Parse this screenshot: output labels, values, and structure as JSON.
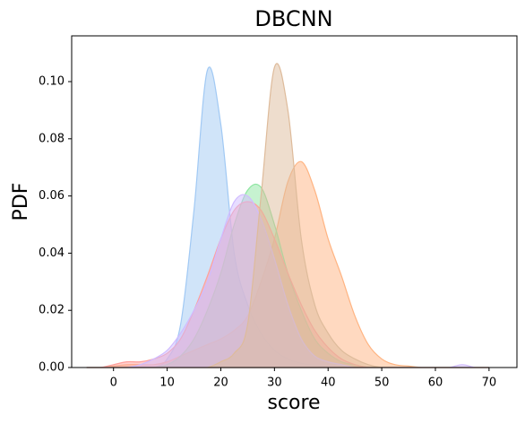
{
  "chart_data": {
    "type": "area",
    "title": "DBCNN",
    "x_label": "score",
    "y_label": "PDF",
    "x": [
      -5,
      -2.5,
      0,
      2.5,
      5,
      7.5,
      10,
      12.5,
      15,
      17.5,
      20,
      22.5,
      25,
      27.5,
      30,
      32.5,
      35,
      37.5,
      40,
      42.5,
      45,
      47.5,
      50,
      52.5,
      55,
      57.5,
      60,
      62.5,
      65,
      67.5,
      70
    ],
    "series": [
      {
        "color": "#a1c9f4",
        "values": [
          0,
          0,
          0,
          0,
          0,
          0,
          0.003,
          0.015,
          0.055,
          0.104,
          0.085,
          0.04,
          0.022,
          0.012,
          0.006,
          0.003,
          0.0015,
          0.0008,
          0.0003,
          0,
          0,
          0,
          0,
          0,
          0,
          0,
          0,
          0,
          0,
          0,
          0
        ]
      },
      {
        "color": "#ffb482",
        "values": [
          0,
          0,
          0.0005,
          0.001,
          0.001,
          0.001,
          0.002,
          0.004,
          0.006,
          0.008,
          0.01,
          0.013,
          0.018,
          0.03,
          0.045,
          0.065,
          0.072,
          0.062,
          0.045,
          0.032,
          0.018,
          0.008,
          0.003,
          0.001,
          0.0005,
          0,
          0,
          0,
          0,
          0,
          0
        ]
      },
      {
        "color": "#8de5a1",
        "values": [
          0,
          0,
          0,
          0,
          0,
          0,
          0.001,
          0.004,
          0.01,
          0.02,
          0.033,
          0.05,
          0.062,
          0.063,
          0.05,
          0.033,
          0.02,
          0.01,
          0.005,
          0.002,
          0.001,
          0,
          0,
          0,
          0,
          0,
          0,
          0,
          0,
          0,
          0
        ]
      },
      {
        "color": "#ff9f9b",
        "values": [
          0,
          0,
          0.001,
          0.002,
          0.002,
          0.003,
          0.005,
          0.01,
          0.02,
          0.032,
          0.045,
          0.055,
          0.058,
          0.055,
          0.045,
          0.033,
          0.022,
          0.013,
          0.007,
          0.003,
          0.001,
          0,
          0,
          0,
          0,
          0,
          0,
          0,
          0,
          0,
          0
        ]
      },
      {
        "color": "#d0bbff",
        "values": [
          0,
          0,
          0,
          0,
          0.001,
          0.003,
          0.006,
          0.012,
          0.02,
          0.03,
          0.045,
          0.058,
          0.06,
          0.052,
          0.038,
          0.022,
          0.01,
          0.004,
          0.002,
          0.001,
          0,
          0,
          0,
          0,
          0,
          0,
          0,
          0,
          0.001,
          0,
          0
        ]
      },
      {
        "color": "#debb9b",
        "values": [
          0,
          0,
          0,
          0,
          0,
          0,
          0,
          0,
          0,
          0,
          0.002,
          0.005,
          0.015,
          0.06,
          0.105,
          0.09,
          0.045,
          0.022,
          0.012,
          0.006,
          0.003,
          0.001,
          0,
          0,
          0,
          0,
          0,
          0,
          0,
          0,
          0
        ]
      }
    ],
    "xlim": [
      -7.8,
      75.2
    ],
    "xticks": [
      0,
      10,
      20,
      30,
      40,
      50,
      60,
      70
    ],
    "ylim": [
      0,
      0.116
    ],
    "yticks": [
      {
        "value": 0,
        "label": "0.00"
      },
      {
        "value": 0.02,
        "label": "0.02"
      },
      {
        "value": 0.04,
        "label": "0.04"
      },
      {
        "value": 0.06,
        "label": "0.06"
      },
      {
        "value": 0.08,
        "label": "0.08"
      },
      {
        "value": 0.1,
        "label": "0.10"
      }
    ]
  }
}
